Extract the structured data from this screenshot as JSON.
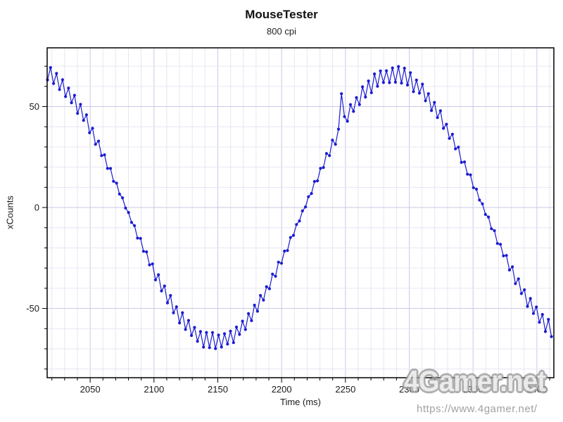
{
  "title": "MouseTester",
  "subtitle": "800 cpi",
  "watermark": {
    "logo_text": "4Gamer.net",
    "url_text": "https://www.4gamer.net/"
  },
  "chart_data": {
    "type": "scatter",
    "title": "MouseTester",
    "subtitle": "800 cpi",
    "xlabel": "Time (ms)",
    "ylabel": "xCounts",
    "xlim": [
      2016.3,
      2413.3
    ],
    "ylim": [
      -84.3,
      79.1
    ],
    "x_major_ticks": [
      2050,
      2100,
      2150,
      2200,
      2250,
      2300,
      2350,
      2400
    ],
    "x_minor_tick_step": 10,
    "y_major_ticks": [
      -50,
      0,
      50
    ],
    "y_minor_tick_step": 10,
    "grid": true,
    "legend_position": "none",
    "colors": {
      "point": "#1b1bd1",
      "line": "#1b1bd1",
      "grid_minor": "#e6e6f4",
      "grid_major": "#c9c9e7",
      "axis": "#000000",
      "tick_label": "#1a1a1a"
    },
    "series": [
      {
        "name": "xCounts",
        "description": "Per-report mouse x counts forming a sinusoidal sweep with alternating sensor jitter and one outlier spike",
        "model": {
          "t_start_ms": 2016.6,
          "sample_interval_ms": 2.35,
          "n_points": 169,
          "period_ms": 280,
          "rising_zero_crossing_ms": 2218,
          "amplitude_start": 67,
          "amplitude_end": 65,
          "jitter_base": 0.7,
          "jitter_scale": 2.9,
          "outlier": {
            "t": 2246.9,
            "value": 56.4
          }
        },
        "key_points": [
          {
            "t": 2016,
            "x": 70,
            "note": "start near first crest"
          },
          {
            "t": 2078,
            "x": 0,
            "note": "falling zero crossing"
          },
          {
            "t": 2148,
            "x": -64,
            "note": "trough (envelope -61 to -67.5)"
          },
          {
            "t": 2218,
            "x": 0,
            "note": "rising zero crossing"
          },
          {
            "t": 2247,
            "x": 56.4,
            "note": "outlier spike above ~40 baseline"
          },
          {
            "t": 2288,
            "x": 65.5,
            "note": "crest (envelope 62 to 68.5)"
          },
          {
            "t": 2358,
            "x": 0,
            "note": "falling zero crossing"
          },
          {
            "t": 2413,
            "x": -64,
            "note": "end of trace"
          }
        ]
      }
    ]
  }
}
